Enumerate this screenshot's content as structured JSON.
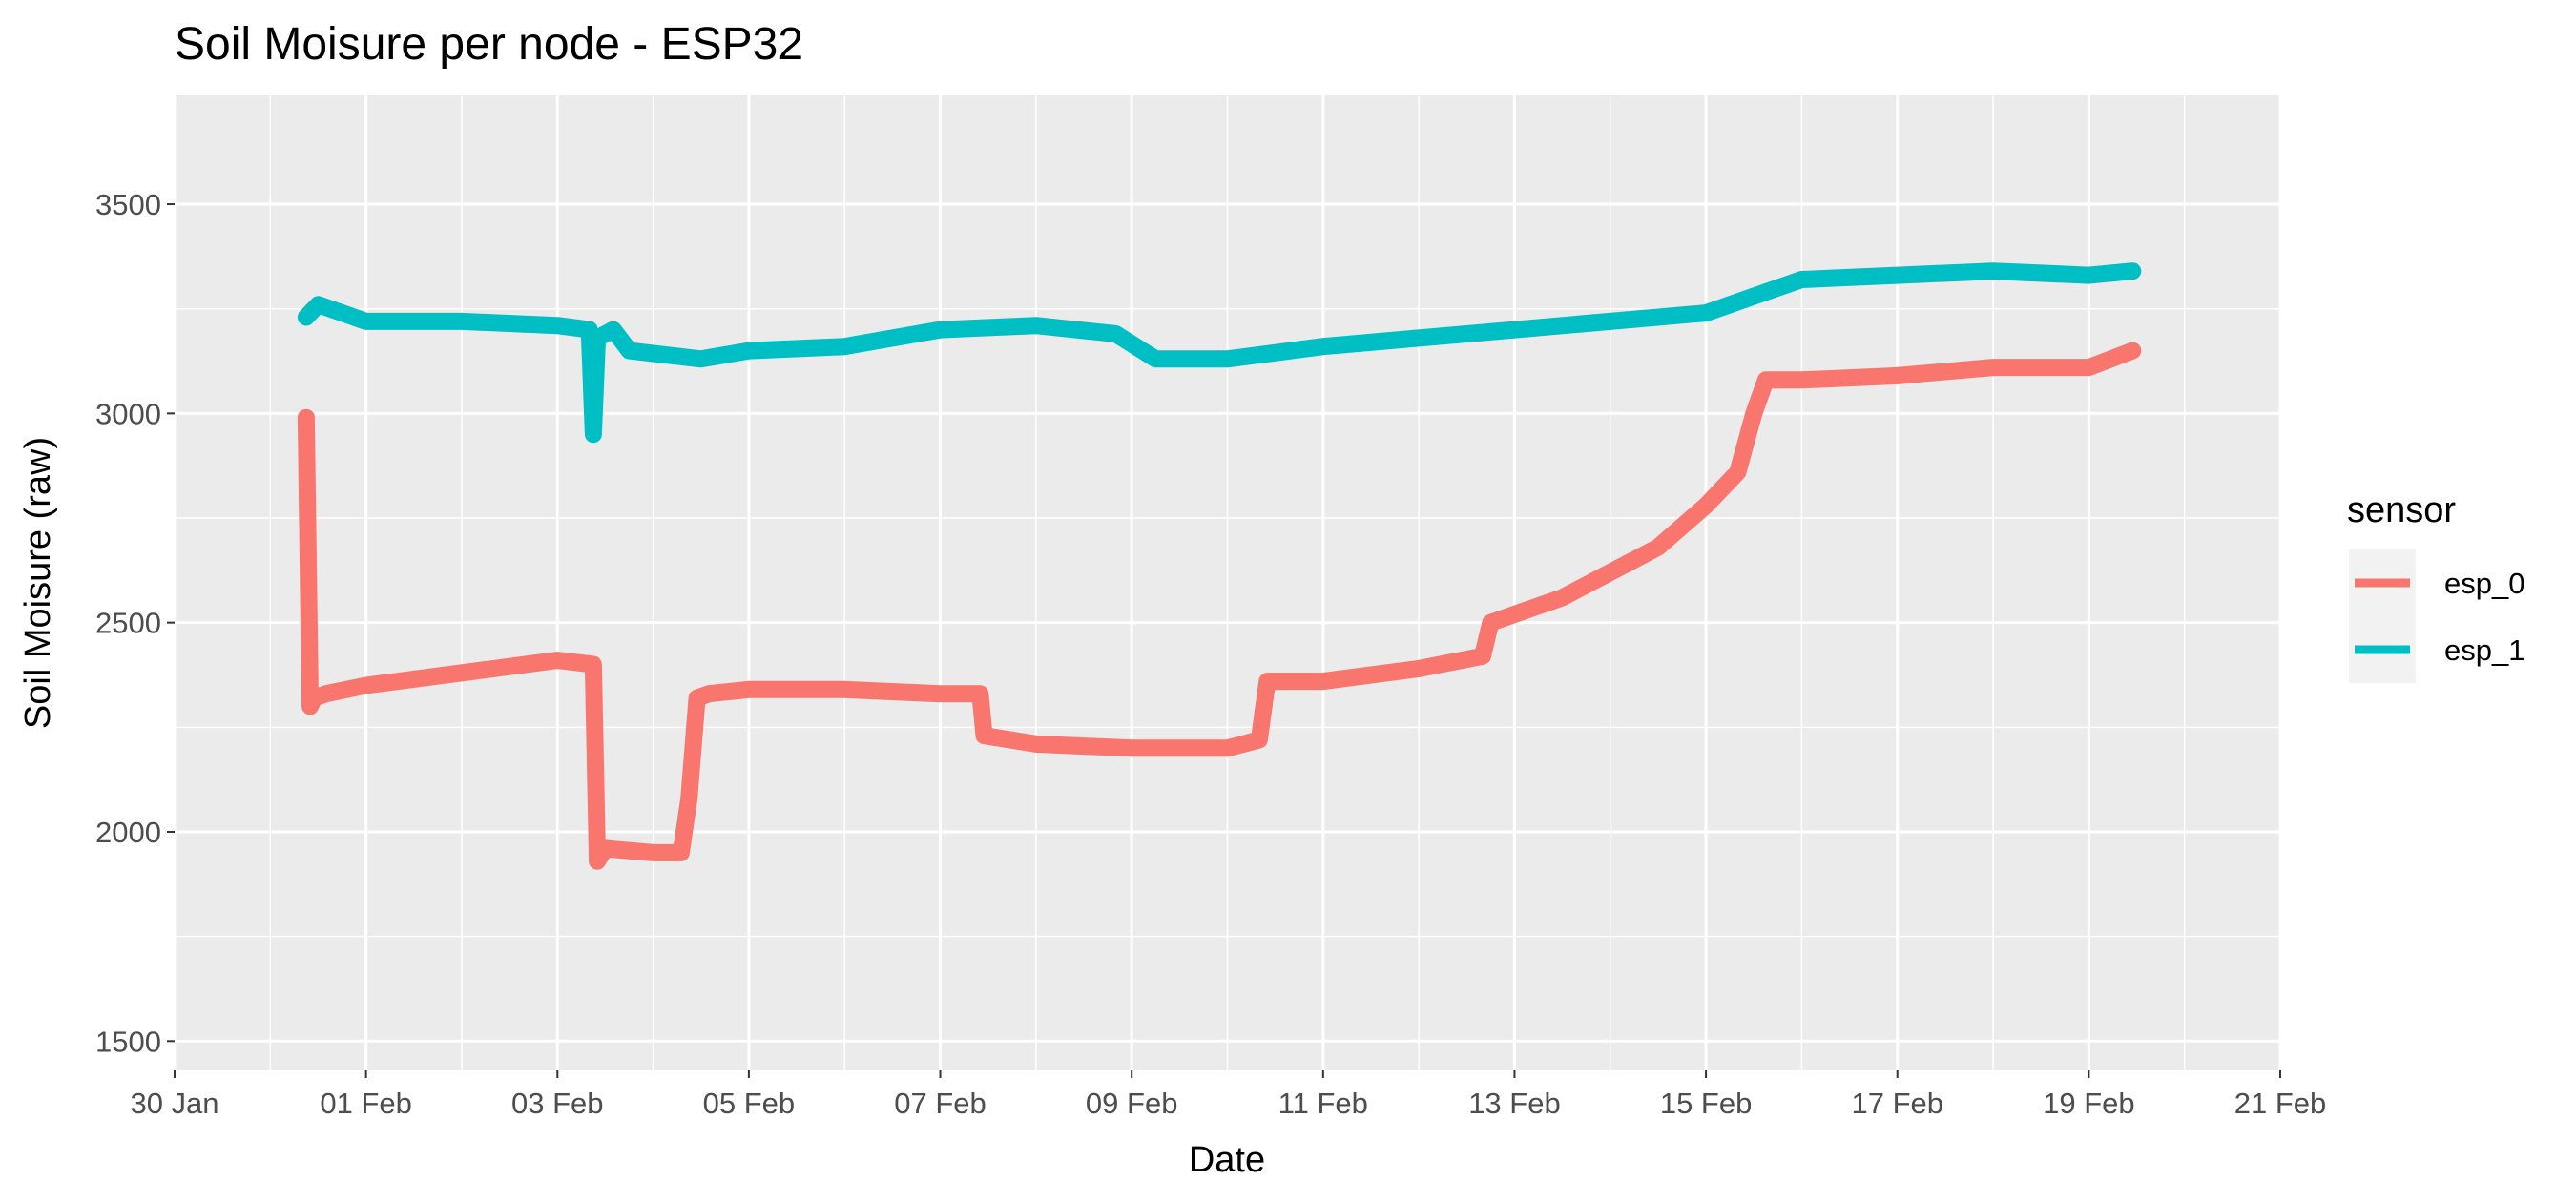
{
  "chart_data": {
    "type": "line",
    "title": "Soil Moisure per node - ESP32",
    "xlabel": "Date",
    "ylabel": "Soil Moisure (raw)",
    "xlim": [
      "2020-01-30",
      "2020-02-21"
    ],
    "ylim": [
      1430,
      3760
    ],
    "x_ticks": [
      "2020-01-30",
      "2020-02-01",
      "2020-02-03",
      "2020-02-05",
      "2020-02-07",
      "2020-02-09",
      "2020-02-11",
      "2020-02-13",
      "2020-02-15",
      "2020-02-17",
      "2020-02-19",
      "2020-02-21"
    ],
    "x_tick_labels": [
      "30 Jan",
      "01 Feb",
      "03 Feb",
      "05 Feb",
      "07 Feb",
      "09 Feb",
      "11 Feb",
      "13 Feb",
      "15 Feb",
      "17 Feb",
      "19 Feb",
      "21 Feb"
    ],
    "y_ticks": [
      1500,
      2000,
      2500,
      3000,
      3500
    ],
    "y_tick_labels": [
      "1500",
      "2000",
      "2500",
      "3000",
      "3500"
    ],
    "grid": true,
    "background": "#ebebeb",
    "legend": {
      "title": "sensor",
      "position": "right"
    },
    "series": [
      {
        "name": "esp_0",
        "color": "#F8766D",
        "x": [
          "2020-01-31T09:00",
          "2020-01-31T10:00",
          "2020-01-31T11:00",
          "2020-01-31T14:00",
          "2020-02-01T00:00",
          "2020-02-02T00:00",
          "2020-02-03T00:00",
          "2020-02-03T09:00",
          "2020-02-03T10:00",
          "2020-02-03T12:00",
          "2020-02-04T00:00",
          "2020-02-04T07:00",
          "2020-02-04T09:00",
          "2020-02-04T11:00",
          "2020-02-04T14:00",
          "2020-02-05T00:00",
          "2020-02-06T00:00",
          "2020-02-07T00:00",
          "2020-02-07T10:00",
          "2020-02-07T11:00",
          "2020-02-08T00:00",
          "2020-02-09T00:00",
          "2020-02-10T00:00",
          "2020-02-10T08:00",
          "2020-02-10T10:00",
          "2020-02-11T00:00",
          "2020-02-12T00:00",
          "2020-02-12T16:00",
          "2020-02-12T18:00",
          "2020-02-13T12:00",
          "2020-02-14T00:00",
          "2020-02-14T12:00",
          "2020-02-15T00:00",
          "2020-02-15T08:00",
          "2020-02-15T12:00",
          "2020-02-15T15:00",
          "2020-02-16T00:00",
          "2020-02-17T00:00",
          "2020-02-18T00:00",
          "2020-02-19T00:00",
          "2020-02-19T11:00"
        ],
        "y": [
          2990,
          2300,
          2320,
          2330,
          2350,
          2380,
          2410,
          2400,
          1930,
          1960,
          1950,
          1950,
          2080,
          2320,
          2330,
          2340,
          2340,
          2330,
          2330,
          2230,
          2210,
          2200,
          2200,
          2220,
          2360,
          2360,
          2390,
          2420,
          2500,
          2560,
          2620,
          2680,
          2780,
          2860,
          3000,
          3080,
          3080,
          3090,
          3110,
          3110,
          3150
        ]
      },
      {
        "name": "esp_1",
        "color": "#00BFC4",
        "x": [
          "2020-01-31T09:00",
          "2020-01-31T12:00",
          "2020-02-01T00:00",
          "2020-02-02T00:00",
          "2020-02-03T00:00",
          "2020-02-03T08:00",
          "2020-02-03T09:00",
          "2020-02-03T10:00",
          "2020-02-03T14:00",
          "2020-02-03T18:00",
          "2020-02-04T12:00",
          "2020-02-05T00:00",
          "2020-02-06T00:00",
          "2020-02-07T00:00",
          "2020-02-08T00:00",
          "2020-02-08T20:00",
          "2020-02-09T06:00",
          "2020-02-10T00:00",
          "2020-02-11T00:00",
          "2020-02-12T00:00",
          "2020-02-13T00:00",
          "2020-02-14T00:00",
          "2020-02-15T00:00",
          "2020-02-15T18:00",
          "2020-02-16T00:00",
          "2020-02-17T00:00",
          "2020-02-18T00:00",
          "2020-02-19T00:00",
          "2020-02-19T11:00"
        ],
        "y": [
          3230,
          3260,
          3220,
          3220,
          3210,
          3200,
          2950,
          3180,
          3200,
          3150,
          3130,
          3150,
          3160,
          3200,
          3210,
          3190,
          3130,
          3130,
          3160,
          3180,
          3200,
          3220,
          3240,
          3300,
          3320,
          3330,
          3340,
          3330,
          3340
        ]
      }
    ]
  }
}
